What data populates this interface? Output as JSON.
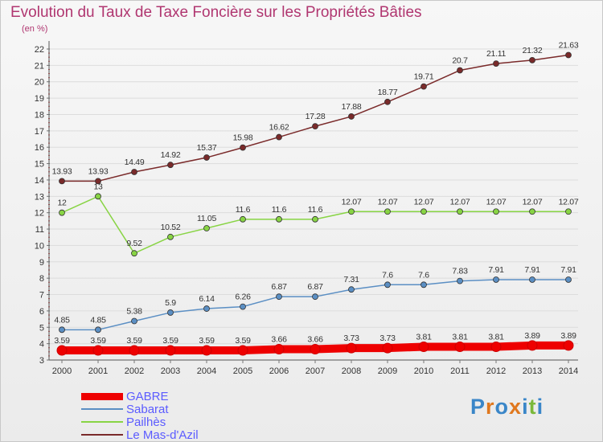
{
  "chart_data": {
    "type": "line",
    "title": "Evolution du Taux de Taxe Foncière sur les Propriétés Bâties",
    "subtitle": "(en %)",
    "x": [
      "2000",
      "2001",
      "2002",
      "2003",
      "2004",
      "2005",
      "2006",
      "2007",
      "2008",
      "2009",
      "2010",
      "2011",
      "2012",
      "2013",
      "2014"
    ],
    "ylim": [
      3,
      22
    ],
    "yticks": [
      "3",
      "4",
      "5",
      "6",
      "7",
      "8",
      "9",
      "10",
      "11",
      "12",
      "13",
      "14",
      "15",
      "16",
      "17",
      "18",
      "19",
      "20",
      "21",
      "22"
    ],
    "series": [
      {
        "name": "GABRE",
        "color": "#ee0000",
        "values": [
          3.59,
          3.59,
          3.59,
          3.59,
          3.59,
          3.59,
          3.66,
          3.66,
          3.73,
          3.73,
          3.81,
          3.81,
          3.81,
          3.89,
          3.89
        ],
        "labels": [
          "3.59",
          "3.59",
          "3.59",
          "3.59",
          "3.59",
          "3.59",
          "3.66",
          "3.66",
          "3.73",
          "3.73",
          "3.81",
          "3.81",
          "3.81",
          "3.89",
          "3.89"
        ]
      },
      {
        "name": "Sabarat",
        "color": "#5b8fc4",
        "values": [
          4.85,
          4.85,
          5.38,
          5.9,
          6.14,
          6.26,
          6.87,
          6.87,
          7.31,
          7.6,
          7.6,
          7.83,
          7.91,
          7.91,
          7.91
        ],
        "labels": [
          "4.85",
          "4.85",
          "5.38",
          "5.9",
          "6.14",
          "6.26",
          "6.87",
          "6.87",
          "7.31",
          "7.6",
          "7.6",
          "7.83",
          "7.91",
          "7.91",
          "7.91"
        ]
      },
      {
        "name": "Pailhès",
        "color": "#88d444",
        "values": [
          12,
          13,
          9.52,
          10.52,
          11.05,
          11.6,
          11.6,
          11.6,
          12.07,
          12.07,
          12.07,
          12.07,
          12.07,
          12.07,
          12.07
        ],
        "labels": [
          "12",
          "13",
          "9.52",
          "10.52",
          "11.05",
          "11.6",
          "11.6",
          "11.6",
          "12.07",
          "12.07",
          "12.07",
          "12.07",
          "12.07",
          "12.07",
          "12.07"
        ]
      },
      {
        "name": "Le Mas-d'Azil",
        "color": "#7a2a2a",
        "values": [
          13.93,
          13.93,
          14.49,
          14.92,
          15.37,
          15.98,
          16.62,
          17.28,
          17.88,
          18.77,
          19.71,
          20.7,
          21.11,
          21.32,
          21.63
        ],
        "labels": [
          "13.93",
          "13.93",
          "14.49",
          "14.92",
          "15.37",
          "15.98",
          "16.62",
          "17.28",
          "17.88",
          "18.77",
          "19.71",
          "20.7",
          "21.11",
          "21.32",
          "21.63"
        ]
      }
    ],
    "legend": [
      "GABRE",
      "Sabarat",
      "Pailhès",
      "Le Mas-d'Azil"
    ]
  },
  "logo": {
    "letters": [
      "P",
      "r",
      "o",
      "x",
      "i",
      "t",
      "i"
    ],
    "colors": [
      "#3a86c8",
      "#e0781e",
      "#3a86c8",
      "#e0781e",
      "#3a86c8",
      "#7ab83a",
      "#3a86c8"
    ]
  }
}
